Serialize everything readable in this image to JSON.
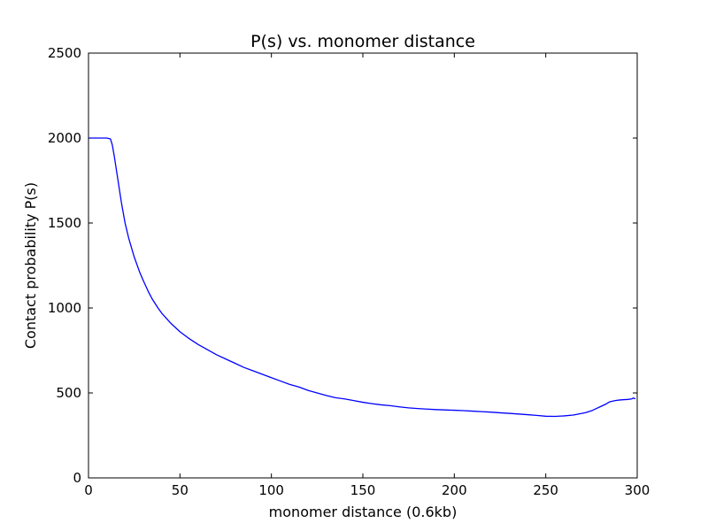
{
  "chart_data": {
    "type": "line",
    "title": "P(s) vs. monomer distance",
    "xlabel": "monomer distance (0.6kb)",
    "ylabel": "Contact probability P(s)",
    "xlim": [
      0,
      300
    ],
    "ylim": [
      0,
      2500
    ],
    "xticks": [
      0,
      50,
      100,
      150,
      200,
      250,
      300
    ],
    "yticks": [
      0,
      500,
      1000,
      1500,
      2000,
      2500
    ],
    "grid": false,
    "colors": {
      "line": "#0000ff",
      "axes": "#000000",
      "background": "#ffffff"
    },
    "series": [
      {
        "x": [
          0,
          5,
          10,
          12,
          13,
          14,
          16,
          18,
          20,
          22,
          25,
          28,
          30,
          33,
          35,
          38,
          40,
          45,
          50,
          55,
          60,
          65,
          70,
          75,
          80,
          85,
          90,
          95,
          100,
          105,
          110,
          115,
          120,
          125,
          130,
          135,
          140,
          145,
          150,
          155,
          160,
          165,
          170,
          175,
          180,
          185,
          190,
          195,
          200,
          205,
          210,
          215,
          220,
          225,
          230,
          235,
          240,
          245,
          250,
          255,
          260,
          265,
          270,
          272,
          275,
          278,
          280,
          283,
          285,
          288,
          290,
          292,
          295,
          297,
          298,
          299
        ],
        "values": [
          2000,
          2000,
          2000,
          1995,
          1960,
          1900,
          1760,
          1620,
          1500,
          1410,
          1300,
          1210,
          1160,
          1090,
          1050,
          1000,
          970,
          910,
          860,
          820,
          785,
          755,
          725,
          700,
          675,
          650,
          630,
          610,
          590,
          570,
          550,
          535,
          515,
          500,
          485,
          472,
          465,
          455,
          445,
          437,
          430,
          425,
          418,
          412,
          408,
          405,
          402,
          400,
          398,
          396,
          393,
          390,
          387,
          383,
          380,
          376,
          372,
          368,
          363,
          362,
          365,
          370,
          380,
          385,
          395,
          410,
          420,
          435,
          448,
          455,
          458,
          460,
          462,
          465,
          470,
          465
        ]
      }
    ]
  }
}
